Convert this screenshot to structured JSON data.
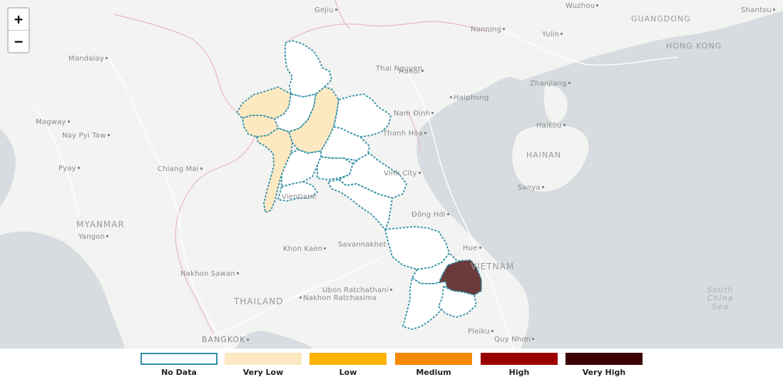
{
  "zoom": {
    "in_label": "+",
    "out_label": "−"
  },
  "countries": [
    "MYANMAR",
    "THAILAND",
    "VIETNAM",
    "GUANGDONG",
    "HONG KONG",
    "HAINAN"
  ],
  "sea": [
    "South",
    "China",
    "Sea"
  ],
  "cities": {
    "gejiu": "Gejiu",
    "wuzhou": "Wuzhou",
    "shantou": "Shantou",
    "nanning": "Nanning",
    "yulin": "Yulin",
    "mandalay": "Mandalay",
    "thai_nguyen": "Thai Nguyen",
    "hanoi": "Hanoi",
    "haiphong": "Haiphong",
    "zhanjiang": "Zhanjiang",
    "magway": "Magway",
    "nay_pyi_taw": "Nay Pyi Taw",
    "nam_dinh": "Nam Định",
    "thanh_hoa": "Thanh Hóa",
    "haikou": "Haikou",
    "pyay": "Pyay",
    "chiang_mai": "Chiang Mai",
    "vinh": "Vinh City",
    "sanya": "Sanya",
    "vientiane": "Vientiane",
    "dong_hoi": "Đồng Hới",
    "yangon": "Yangon",
    "khon_kaen": "Khon Kaen",
    "savannakhet": "Savannakhet",
    "hue": "Hue",
    "nakhon_sawan": "Nakhon Sawan",
    "ubon": "Ubon Ratchathani",
    "nakhon_ratchasima": "Nakhon Ratchasima",
    "bangkok": "BANGKOK",
    "pleiku": "Pleiku",
    "quy_nhon": "Quy Nhơn"
  },
  "colors": {
    "no_data_border": "#2f8fa6",
    "very_low": "#fce8c1",
    "low": "#ffb300",
    "medium": "#f58a00",
    "high": "#9b0000",
    "very_high": "#3b0000",
    "highlight": "#6b3a3a"
  },
  "legend": [
    {
      "label": "No Data",
      "color": "#ffffff"
    },
    {
      "label": "Very Low",
      "color": "#fce8c1"
    },
    {
      "label": "Low",
      "color": "#ffb300"
    },
    {
      "label": "Medium",
      "color": "#f58a00"
    },
    {
      "label": "High",
      "color": "#9b0000"
    },
    {
      "label": "Very High",
      "color": "#3b0000"
    }
  ]
}
